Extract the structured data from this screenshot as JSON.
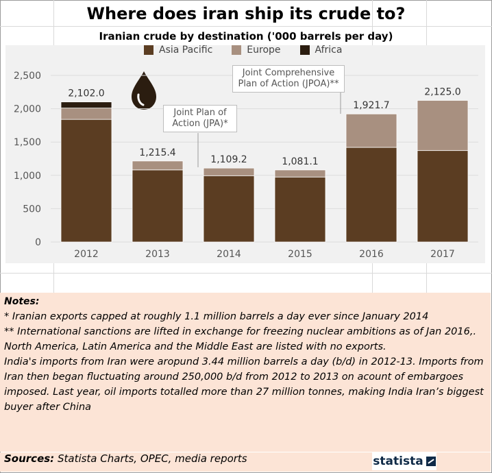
{
  "title": "Where does iran ship its crude to?",
  "subtitle": "Iranian crude by destination ('000 barrels per day)",
  "chart_data": {
    "type": "bar",
    "stacked": true,
    "categories": [
      "2012",
      "2013",
      "2014",
      "2015",
      "2016",
      "2017"
    ],
    "series": [
      {
        "name": "Asia  Pacific",
        "color": "#5b3d22",
        "values": [
          1840,
          1082,
          995,
          975,
          1420,
          1372
        ]
      },
      {
        "name": "Europe",
        "color": "#a89080",
        "values": [
          170,
          133.4,
          114.2,
          106.1,
          501.7,
          753
        ]
      },
      {
        "name": "Africa",
        "color": "#2b1d10",
        "values": [
          92,
          0,
          0,
          0,
          0,
          0
        ]
      }
    ],
    "totals": [
      2102.0,
      1215.4,
      1109.2,
      1081.1,
      1921.7,
      2125.0
    ],
    "total_labels": [
      "2,102.0",
      "1,215.4",
      "1,109.2",
      "1,081.1",
      "1,921.7",
      "2,125.0"
    ],
    "y_ticks": [
      "0",
      "500",
      "1,000",
      "1,500",
      "2,000",
      "2,500"
    ],
    "y_tick_values": [
      0,
      500,
      1000,
      1500,
      2000,
      2500
    ],
    "ylim": [
      0,
      2500
    ],
    "legend_position": "top"
  },
  "annotations": {
    "jpa": "Joint Plan of Action (JPA)*",
    "jpoa": "Joint Comprehensive Plan of Action (JPOA)**"
  },
  "notes": {
    "heading": "Notes:",
    "line1": "* Iranian exports capped at roughly 1.1 million barrels a day ever since January 2014",
    "line2": "** International sanctions are lifted in exchange for freezing nuclear ambitions as of Jan 2016,. North America, Latin America and the Middle East are listed with no exports.",
    "line3": "India's imports from Iran were aropund 3.44 million barrels a day (b/d) in 2012-13. Imports from Iran then began fluctuating around 250,000 b/d from 2012 to 2013 on acount of embargoes imposed. Last year, oil imports totalled more than 27 million tonnes, making India Iran’s biggest buyer after China"
  },
  "sources": {
    "label": "Sources:",
    "text": "Statista Charts, OPEC, media reports"
  },
  "brand": "statista",
  "icon": "oil-drop-icon"
}
